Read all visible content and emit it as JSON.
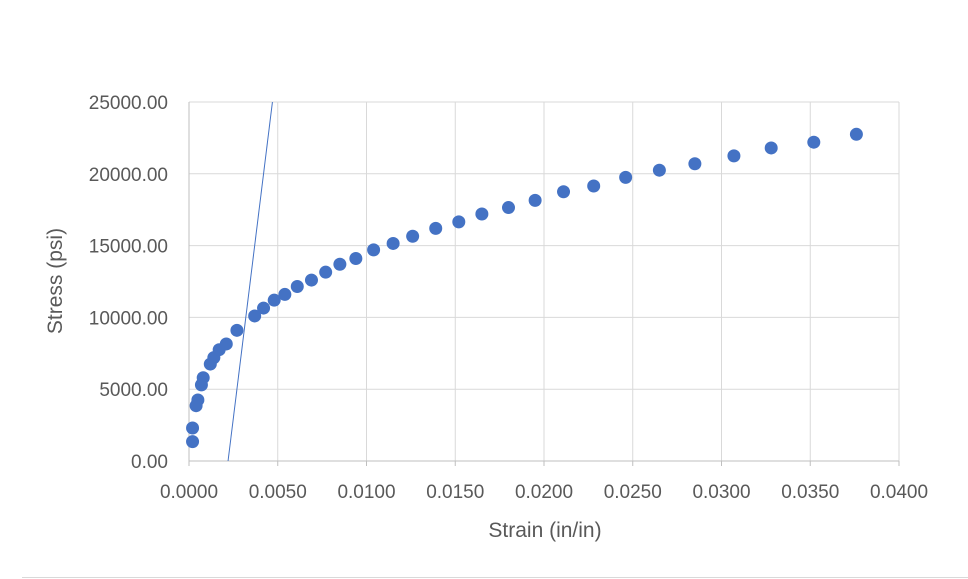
{
  "chart_data": {
    "type": "scatter",
    "title": "",
    "xlabel": "Strain (in/in)",
    "ylabel": "Stress (psi)",
    "xlim": [
      0,
      0.04
    ],
    "ylim": [
      0,
      25000
    ],
    "x_ticks": [
      "0.0000",
      "0.0050",
      "0.0100",
      "0.0150",
      "0.0200",
      "0.0250",
      "0.0300",
      "0.0350",
      "0.0400"
    ],
    "y_ticks": [
      "0.00",
      "5000.00",
      "10000.00",
      "15000.00",
      "20000.00",
      "25000.00"
    ],
    "grid": true,
    "legend": "none",
    "series": [
      {
        "color": "#4472c4",
        "points": [
          [
            0.0002,
            1350
          ],
          [
            0.0002,
            2300
          ],
          [
            0.0004,
            3850
          ],
          [
            0.0005,
            4250
          ],
          [
            0.0007,
            5300
          ],
          [
            0.0008,
            5800
          ],
          [
            0.0012,
            6750
          ],
          [
            0.0014,
            7200
          ],
          [
            0.0017,
            7750
          ],
          [
            0.0021,
            8150
          ],
          [
            0.0027,
            9100
          ],
          [
            0.0037,
            10100
          ],
          [
            0.0042,
            10650
          ],
          [
            0.0048,
            11200
          ],
          [
            0.0054,
            11600
          ],
          [
            0.0061,
            12150
          ],
          [
            0.0069,
            12600
          ],
          [
            0.0077,
            13150
          ],
          [
            0.0085,
            13700
          ],
          [
            0.0094,
            14100
          ],
          [
            0.0104,
            14700
          ],
          [
            0.0115,
            15150
          ],
          [
            0.0126,
            15650
          ],
          [
            0.0139,
            16200
          ],
          [
            0.0152,
            16650
          ],
          [
            0.0165,
            17200
          ],
          [
            0.018,
            17650
          ],
          [
            0.0195,
            18150
          ],
          [
            0.0211,
            18750
          ],
          [
            0.0228,
            19150
          ],
          [
            0.0246,
            19750
          ],
          [
            0.0265,
            20250
          ],
          [
            0.0285,
            20700
          ],
          [
            0.0307,
            21250
          ],
          [
            0.0328,
            21800
          ],
          [
            0.0352,
            22200
          ],
          [
            0.0376,
            22750
          ]
        ]
      }
    ],
    "offset_line": {
      "color": "#4472c4",
      "points": [
        [
          0.0022,
          0
        ],
        [
          0.0047,
          25000
        ]
      ]
    }
  }
}
